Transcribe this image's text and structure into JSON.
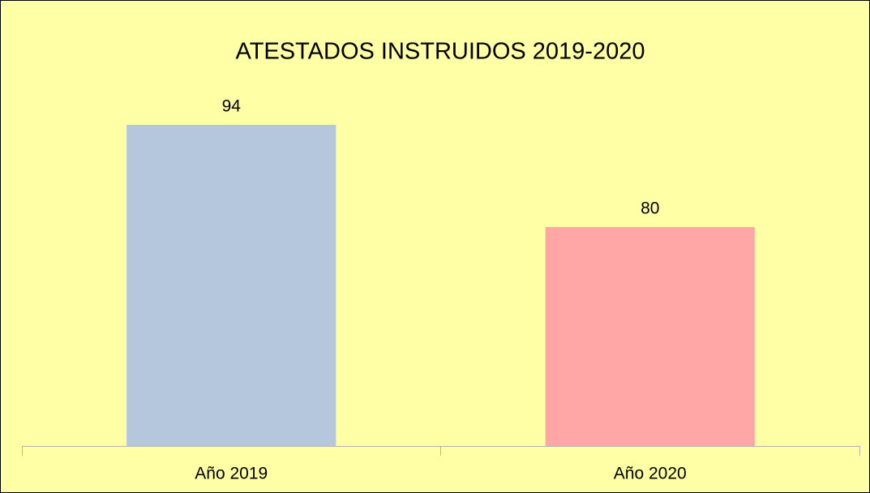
{
  "chart_data": {
    "type": "bar",
    "title": "ATESTADOS INSTRUIDOS 2019-2020",
    "categories": [
      "Año 2019",
      "Año 2020"
    ],
    "values": [
      94,
      80
    ],
    "colors": [
      "#b4c7dc",
      "#ffa6a6"
    ],
    "ylim": [
      50,
      100
    ],
    "background": "#ffffa6"
  }
}
